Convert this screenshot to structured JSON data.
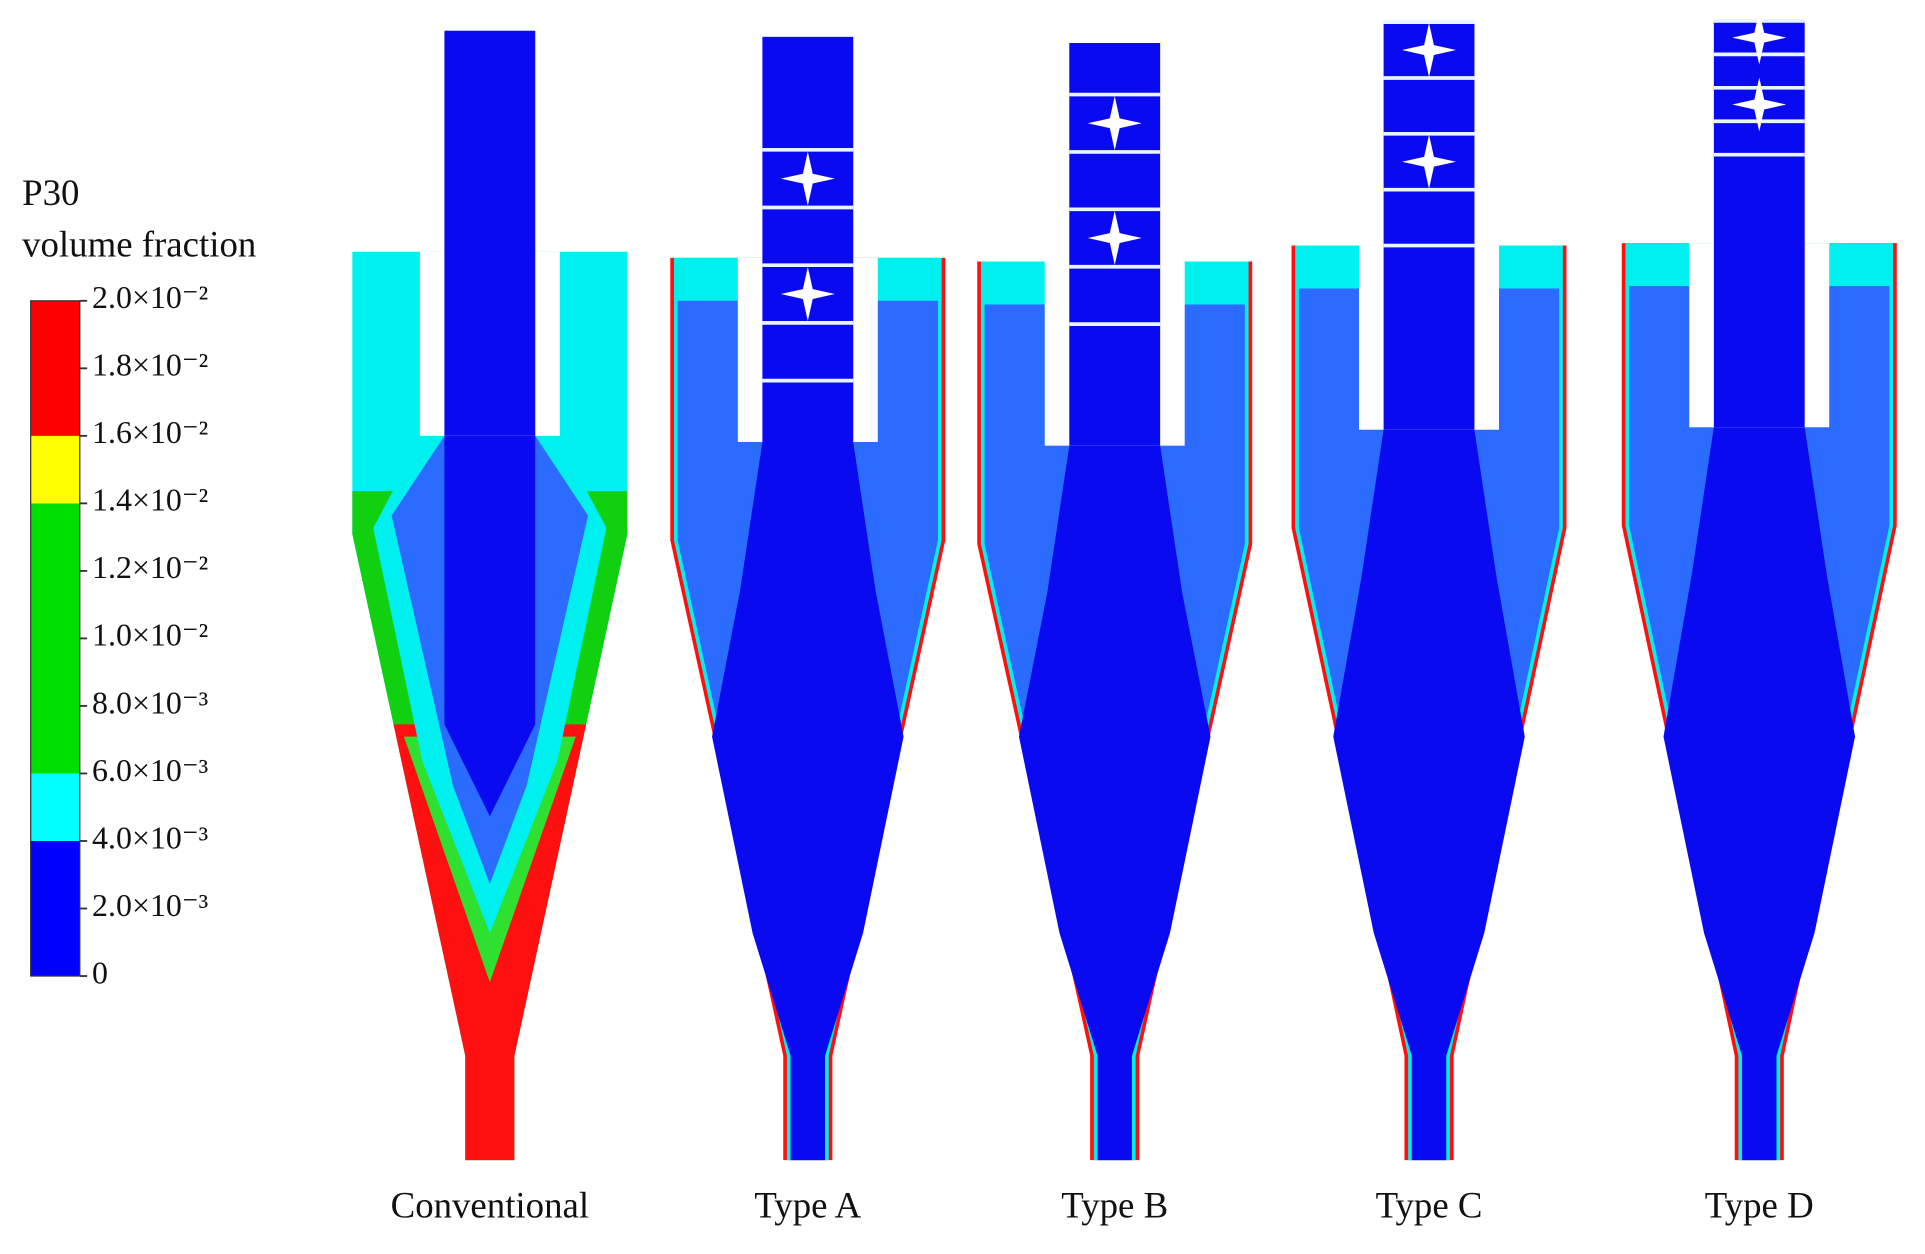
{
  "colorbar": {
    "title": "P30",
    "subtitle": "volume fraction",
    "clim": [
      0,
      0.02
    ],
    "levels": [
      0,
      0.004,
      0.006,
      0.014,
      0.016,
      0.02
    ],
    "colors": [
      "#0000ff",
      "#00ffff",
      "#00e000",
      "#ffff00",
      "#ff0000"
    ],
    "ticks": [
      {
        "value": 0.02,
        "label": "2.0×10⁻²"
      },
      {
        "value": 0.018,
        "label": "1.8×10⁻²"
      },
      {
        "value": 0.016,
        "label": "1.6×10⁻²"
      },
      {
        "value": 0.014,
        "label": "1.4×10⁻²"
      },
      {
        "value": 0.012,
        "label": "1.2×10⁻²"
      },
      {
        "value": 0.01,
        "label": "1.0×10⁻²"
      },
      {
        "value": 0.008,
        "label": "8.0×10⁻³"
      },
      {
        "value": 0.006,
        "label": "6.0×10⁻³"
      },
      {
        "value": 0.004,
        "label": "4.0×10⁻³"
      },
      {
        "value": 0.002,
        "label": "2.0×10⁻³"
      },
      0
    ]
  },
  "panels": [
    {
      "label": "Conventional"
    },
    {
      "label": "Type A"
    },
    {
      "label": "Type B"
    },
    {
      "label": "Type C"
    },
    {
      "label": "Type D"
    }
  ]
}
